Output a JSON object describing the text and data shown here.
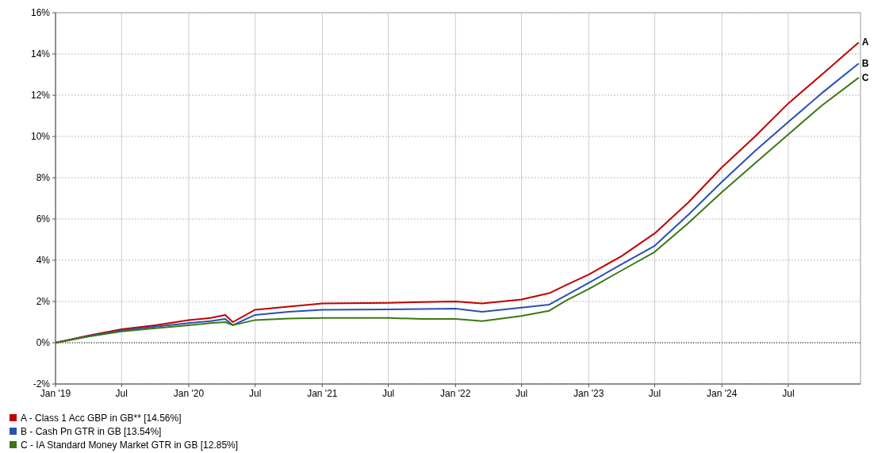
{
  "chart_data": {
    "type": "line",
    "x": [
      "2019-01-01",
      "2019-04-01",
      "2019-07-01",
      "2019-10-01",
      "2020-01-01",
      "2020-03-01",
      "2020-04-10",
      "2020-05-01",
      "2020-07-01",
      "2020-10-01",
      "2021-01-01",
      "2021-07-01",
      "2021-10-01",
      "2022-01-01",
      "2022-03-15",
      "2022-07-01",
      "2022-09-15",
      "2022-11-01",
      "2023-01-01",
      "2023-04-01",
      "2023-07-01",
      "2023-10-01",
      "2024-01-01",
      "2024-04-01",
      "2024-07-01",
      "2024-10-01",
      "2025-01-10"
    ],
    "series": [
      {
        "name": "A - Class 1 Acc GBP in GB** [14.56%]",
        "color": "#c00000",
        "values": [
          0,
          0.35,
          0.65,
          0.85,
          1.1,
          1.2,
          1.35,
          1.0,
          1.6,
          1.75,
          1.9,
          1.93,
          1.97,
          2.0,
          1.9,
          2.1,
          2.4,
          2.8,
          3.3,
          4.2,
          5.3,
          6.8,
          8.5,
          10.0,
          11.6,
          13.0,
          14.56
        ]
      },
      {
        "name": "B - Cash Pn GTR in GB [13.54%]",
        "color": "#2850b4",
        "values": [
          0,
          0.32,
          0.6,
          0.78,
          0.95,
          1.05,
          1.15,
          0.85,
          1.35,
          1.5,
          1.6,
          1.62,
          1.63,
          1.65,
          1.5,
          1.7,
          1.85,
          2.3,
          2.9,
          3.8,
          4.7,
          6.2,
          7.8,
          9.3,
          10.7,
          12.1,
          13.54
        ]
      },
      {
        "name": "C - IA Standard Money Market GTR in GB [12.85%]",
        "color": "#3c7814",
        "values": [
          0,
          0.3,
          0.55,
          0.7,
          0.85,
          0.95,
          1.0,
          0.85,
          1.1,
          1.17,
          1.2,
          1.2,
          1.15,
          1.15,
          1.05,
          1.3,
          1.55,
          2.05,
          2.6,
          3.5,
          4.4,
          5.8,
          7.3,
          8.7,
          10.1,
          11.5,
          12.85
        ]
      }
    ],
    "xlim": [
      "2019-01-01",
      "2025-01-15"
    ],
    "xticks": [
      {
        "value": "2019-01-01",
        "label": "Jan '19"
      },
      {
        "value": "2019-07-01",
        "label": "Jul"
      },
      {
        "value": "2020-01-01",
        "label": "Jan '20"
      },
      {
        "value": "2020-07-01",
        "label": "Jul"
      },
      {
        "value": "2021-01-01",
        "label": "Jan '21"
      },
      {
        "value": "2021-07-01",
        "label": "Jul"
      },
      {
        "value": "2022-01-01",
        "label": "Jan '22"
      },
      {
        "value": "2022-07-01",
        "label": "Jul"
      },
      {
        "value": "2023-01-01",
        "label": "Jan '23"
      },
      {
        "value": "2023-07-01",
        "label": "Jul"
      },
      {
        "value": "2024-01-01",
        "label": "Jan '24"
      },
      {
        "value": "2024-07-01",
        "label": "Jul"
      }
    ],
    "ylim": [
      -2,
      16
    ],
    "yticks": [
      {
        "value": -2,
        "label": "-2%"
      },
      {
        "value": 0,
        "label": "0%"
      },
      {
        "value": 2,
        "label": "2%"
      },
      {
        "value": 4,
        "label": "4%"
      },
      {
        "value": 6,
        "label": "6%"
      },
      {
        "value": 8,
        "label": "8%"
      },
      {
        "value": 10,
        "label": "10%"
      },
      {
        "value": 12,
        "label": "12%"
      },
      {
        "value": 14,
        "label": "14%"
      },
      {
        "value": 16,
        "label": "16%"
      }
    ],
    "grid": true,
    "legend": "bottom left",
    "ref_lines": [
      {
        "axis": "y",
        "value": 0,
        "color": "#000000",
        "line_style": "dotted"
      }
    ],
    "annotations": [
      {
        "text": "A",
        "x": "2025-01-10",
        "y": 14.56
      },
      {
        "text": "B",
        "x": "2025-01-10",
        "y": 13.54
      },
      {
        "text": "C",
        "x": "2025-01-10",
        "y": 12.85
      }
    ],
    "line_style": "solid",
    "marker": "none"
  }
}
